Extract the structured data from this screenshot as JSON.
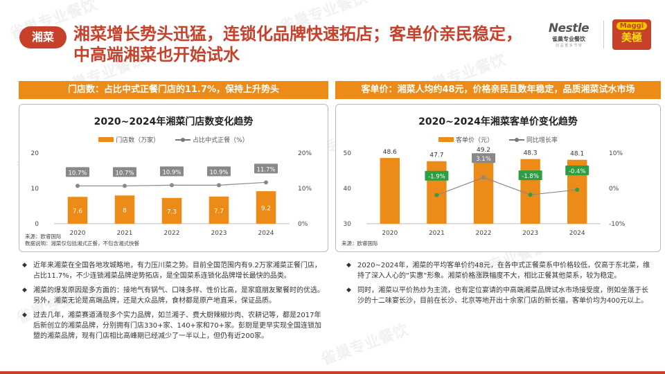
{
  "header": {
    "tag": "湘菜",
    "title_line1": "湘菜增长势头迅猛，连锁化品牌快速拓店；客单价亲民稳定，",
    "title_line2": "中高端湘菜也开始试水"
  },
  "logos": {
    "nestle_main": "Nestle",
    "nestle_sub": "雀巢专业餐饮",
    "nestle_tag": "创 品 重 多 节 饼",
    "maggi_top": "Maggi",
    "maggi_bottom": "美極"
  },
  "watermark": "雀巢专业餐饮",
  "left_panel": {
    "header": "门店数：占比中式正餐门店的11.7%，保持上升势头",
    "source_line1": "来源：欧睿国际",
    "source_line2": "数据说明：湘菜仅包括湘式正餐，不包含湘式快餐"
  },
  "right_panel": {
    "header": "客单价：湘菜人均约48元，价格亲民且数年稳定，品质湘菜试水市场",
    "source_line1": "来源：欧睿国际"
  },
  "chart_data": [
    {
      "type": "bar",
      "title": "2020~2024年湘菜门店数变化趋势",
      "categories": [
        "2020",
        "2021",
        "2022",
        "2023",
        "2024"
      ],
      "series": [
        {
          "name": "门店数（万家）",
          "type": "bar",
          "axis": "left",
          "values": [
            7.6,
            8.0,
            7.3,
            7.7,
            9.2
          ],
          "color": "#ec8b18"
        },
        {
          "name": "占比中式正餐（%）",
          "type": "line",
          "axis": "right",
          "values": [
            10.7,
            10.7,
            10.9,
            10.9,
            11.7
          ],
          "labels": [
            "10.7%",
            "10.7%",
            "10.9%",
            "10.9%",
            "11.7%"
          ],
          "color": "#888888"
        }
      ],
      "ylim_left": [
        0,
        20
      ],
      "yticks_left": [
        "0",
        "10",
        "20"
      ],
      "ylim_right": [
        0,
        20
      ],
      "yticks_right": [
        "0%",
        "10%",
        "20%"
      ]
    },
    {
      "type": "bar",
      "title": "2020~2024年湘菜客单价变化趋势",
      "categories": [
        "2020",
        "2021",
        "2022",
        "2023",
        "2024"
      ],
      "series": [
        {
          "name": "客单价（元）",
          "type": "bar",
          "axis": "left",
          "values": [
            48.6,
            47.7,
            49.2,
            48.3,
            48.1
          ],
          "color": "#ec8b18"
        },
        {
          "name": "同比增长率",
          "type": "line",
          "axis": "right",
          "values": [
            null,
            -1.9,
            3.1,
            -1.8,
            -0.4
          ],
          "labels": [
            "",
            "-1.9%",
            "3.1%",
            "-1.8%",
            "-0.4%"
          ],
          "label_colors": [
            "",
            "#2e9e44",
            "#888888",
            "#2e9e44",
            "#2e9e44"
          ],
          "color": "#888888",
          "point_color": "#2e9e44"
        }
      ],
      "ylim_left": [
        30,
        50
      ],
      "yticks_left": [
        "30",
        "40",
        "50"
      ],
      "ylim_right": [
        -10,
        10
      ],
      "yticks_right": [
        "-10%",
        "0%",
        "10%"
      ]
    }
  ],
  "bullets_left": [
    "近年来湘菜在全国各地攻城略地，有力压川菜之势。目前全国范围内有9.2万家湘菜正餐门店，占比11.7%，不少连锁湘菜品牌逆势拓店，是全国菜系连锁化品牌增长最快的品类。",
    "湘菜的爆发原因是多方面的：接地气有锅气、口味多样、性价比高，是家庭朋友聚餐时的优选。另外，湘菜无论是高端品牌，还是大众品牌，食材都是原产地直采，保证品质。",
    "过去几年，湘菜赛道涌现多个实力品牌，如兰湘子、费大厨辣椒炒肉、农耕记等，都是2017年后新创立的湘菜品牌，分别拥有门店330+家、140+家和70+家。彭厨是更早实现全国连锁加盟的湘菜品牌，现有门店相比高峰期已经减少了一半以上，但仍有近200家。"
  ],
  "bullets_right": [
    "2020~2024年，湘菜的平均客单价约48元，在各中式正餐菜系中价格较低，仅高于东北菜，维持了深入人心的“实惠”形象。湘菜价格涨跌幅度不大，相比正餐其他菜系，较为稳定。",
    "同时，湘菜以平价热炒为主流，也有定位宴请的中高端湘菜品牌试水市场接受度，例如坐落于长沙的十二味宴长沙，目前在长沙、北京等地开出十余家门店的新长福，客单价均为400元以上。"
  ]
}
